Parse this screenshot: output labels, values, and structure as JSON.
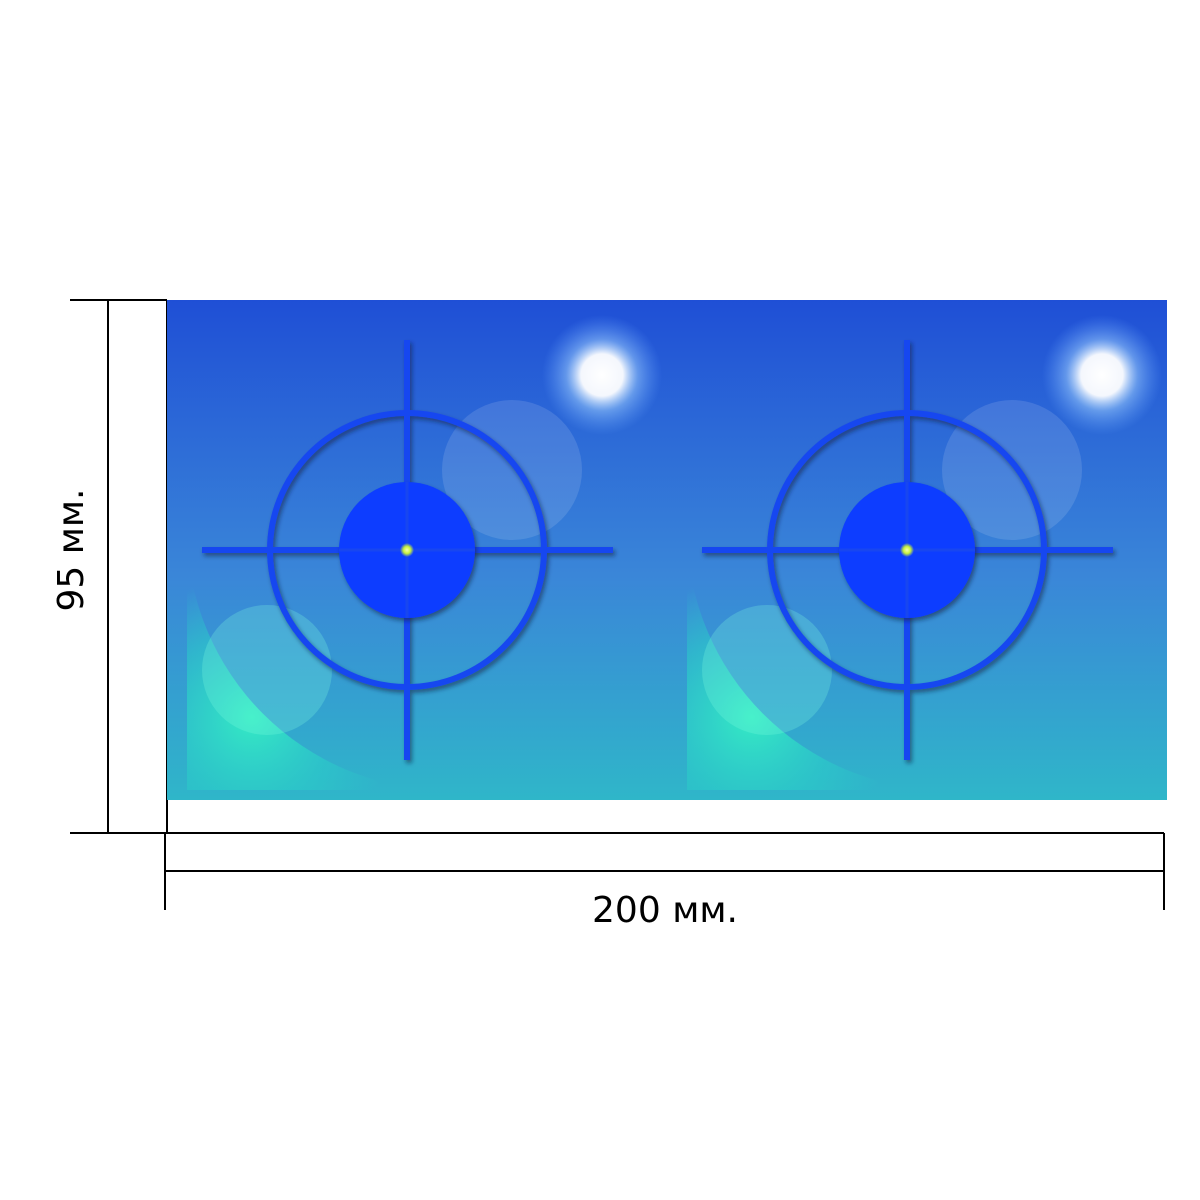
{
  "dimensions": {
    "width_label": "200 мм.",
    "height_label": "95 мм."
  },
  "panels": [
    {
      "name": "left",
      "icon": "crosshair-target-icon"
    },
    {
      "name": "right",
      "icon": "crosshair-target-icon"
    }
  ],
  "colors": {
    "sky_top": "#1f4fd6",
    "sky_bottom": "#2fb6c9",
    "glow": "#35f0c4",
    "crosshair": "#1846f0",
    "center": "#0a3cff",
    "dot": "#e6ff6a",
    "line": "#000000"
  }
}
